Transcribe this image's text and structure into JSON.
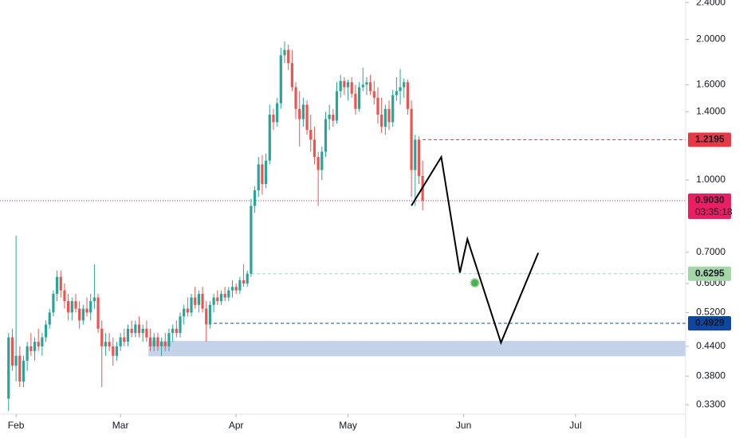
{
  "chart_data": {
    "type": "candlestick",
    "log_scale": true,
    "grid": false,
    "up_color": "#26a69a",
    "down_color": "#ef5350",
    "xlim": [
      -4.3,
      179.5
    ],
    "xticks": [
      {
        "value": 0,
        "label": "Feb"
      },
      {
        "value": 28,
        "label": "Mar"
      },
      {
        "value": 59,
        "label": "Apr"
      },
      {
        "value": 89,
        "label": "May"
      },
      {
        "value": 120,
        "label": "Jun"
      },
      {
        "value": 150,
        "label": "Jul"
      }
    ],
    "ylim": [
      0.315,
      2.43
    ],
    "yticks": [
      {
        "value": 2.4,
        "label": "2.4000"
      },
      {
        "value": 2.0,
        "label": "2.0000"
      },
      {
        "value": 1.6,
        "label": "1.6000"
      },
      {
        "value": 1.4,
        "label": "1.4000"
      },
      {
        "value": 1.0,
        "label": "1.0000"
      },
      {
        "value": 0.7,
        "label": "0.7000"
      },
      {
        "value": 0.6,
        "label": "0.6000"
      },
      {
        "value": 0.52,
        "label": "0.5200"
      },
      {
        "value": 0.44,
        "label": "0.4400"
      },
      {
        "value": 0.38,
        "label": "0.3800"
      },
      {
        "value": 0.33,
        "label": "0.3300"
      }
    ],
    "x": [
      -2,
      -1,
      0,
      1,
      2,
      3,
      4,
      5,
      6,
      7,
      8,
      9,
      10,
      11,
      12,
      13,
      14,
      15,
      16,
      17,
      18,
      19,
      20,
      21,
      22,
      23,
      24,
      25,
      26,
      27,
      28,
      29,
      30,
      31,
      32,
      33,
      34,
      35,
      36,
      37,
      38,
      39,
      40,
      41,
      42,
      43,
      44,
      45,
      46,
      47,
      48,
      49,
      50,
      51,
      52,
      53,
      54,
      55,
      56,
      57,
      58,
      59,
      60,
      61,
      62,
      63,
      64,
      65,
      66,
      67,
      68,
      69,
      70,
      71,
      72,
      73,
      74,
      75,
      76,
      77,
      78,
      79,
      80,
      81,
      82,
      83,
      84,
      85,
      86,
      87,
      88,
      89,
      90,
      91,
      92,
      93,
      94,
      95,
      96,
      97,
      98,
      99,
      100,
      101,
      102,
      103,
      104,
      105,
      106,
      107,
      108,
      109
    ],
    "candles": [
      [
        0.34,
        0.47,
        0.32,
        0.46
      ],
      [
        0.46,
        0.48,
        0.39,
        0.4
      ],
      [
        0.4,
        0.76,
        0.37,
        0.42
      ],
      [
        0.42,
        0.44,
        0.36,
        0.37
      ],
      [
        0.37,
        0.42,
        0.36,
        0.41
      ],
      [
        0.41,
        0.45,
        0.39,
        0.44
      ],
      [
        0.44,
        0.47,
        0.42,
        0.43
      ],
      [
        0.43,
        0.46,
        0.41,
        0.45
      ],
      [
        0.45,
        0.48,
        0.43,
        0.44
      ],
      [
        0.44,
        0.47,
        0.42,
        0.46
      ],
      [
        0.46,
        0.5,
        0.45,
        0.49
      ],
      [
        0.49,
        0.53,
        0.48,
        0.52
      ],
      [
        0.52,
        0.58,
        0.51,
        0.57
      ],
      [
        0.57,
        0.64,
        0.55,
        0.62
      ],
      [
        0.62,
        0.64,
        0.56,
        0.58
      ],
      [
        0.58,
        0.6,
        0.53,
        0.55
      ],
      [
        0.55,
        0.57,
        0.5,
        0.52
      ],
      [
        0.52,
        0.56,
        0.5,
        0.55
      ],
      [
        0.55,
        0.57,
        0.52,
        0.53
      ],
      [
        0.53,
        0.55,
        0.48,
        0.5
      ],
      [
        0.5,
        0.54,
        0.49,
        0.53
      ],
      [
        0.53,
        0.56,
        0.51,
        0.52
      ],
      [
        0.52,
        0.57,
        0.5,
        0.55
      ],
      [
        0.55,
        0.66,
        0.53,
        0.56
      ],
      [
        0.56,
        0.57,
        0.47,
        0.48
      ],
      [
        0.48,
        0.5,
        0.36,
        0.44
      ],
      [
        0.44,
        0.47,
        0.42,
        0.45
      ],
      [
        0.45,
        0.47,
        0.43,
        0.44
      ],
      [
        0.44,
        0.46,
        0.4,
        0.42
      ],
      [
        0.42,
        0.45,
        0.41,
        0.44
      ],
      [
        0.44,
        0.47,
        0.43,
        0.46
      ],
      [
        0.46,
        0.48,
        0.44,
        0.45
      ],
      [
        0.45,
        0.49,
        0.44,
        0.48
      ],
      [
        0.48,
        0.5,
        0.46,
        0.47
      ],
      [
        0.47,
        0.5,
        0.46,
        0.49
      ],
      [
        0.49,
        0.51,
        0.46,
        0.47
      ],
      [
        0.47,
        0.49,
        0.45,
        0.48
      ],
      [
        0.48,
        0.5,
        0.45,
        0.46
      ],
      [
        0.46,
        0.48,
        0.43,
        0.44
      ],
      [
        0.44,
        0.47,
        0.43,
        0.46
      ],
      [
        0.46,
        0.47,
        0.43,
        0.44
      ],
      [
        0.44,
        0.46,
        0.42,
        0.45
      ],
      [
        0.45,
        0.47,
        0.43,
        0.44
      ],
      [
        0.44,
        0.48,
        0.43,
        0.47
      ],
      [
        0.47,
        0.49,
        0.45,
        0.48
      ],
      [
        0.48,
        0.5,
        0.46,
        0.47
      ],
      [
        0.47,
        0.52,
        0.46,
        0.51
      ],
      [
        0.51,
        0.54,
        0.49,
        0.53
      ],
      [
        0.53,
        0.56,
        0.51,
        0.52
      ],
      [
        0.52,
        0.57,
        0.51,
        0.56
      ],
      [
        0.56,
        0.59,
        0.53,
        0.54
      ],
      [
        0.54,
        0.58,
        0.52,
        0.57
      ],
      [
        0.57,
        0.59,
        0.52,
        0.53
      ],
      [
        0.53,
        0.55,
        0.45,
        0.49
      ],
      [
        0.49,
        0.55,
        0.48,
        0.54
      ],
      [
        0.54,
        0.57,
        0.52,
        0.56
      ],
      [
        0.56,
        0.58,
        0.54,
        0.55
      ],
      [
        0.55,
        0.58,
        0.54,
        0.57
      ],
      [
        0.57,
        0.59,
        0.55,
        0.56
      ],
      [
        0.56,
        0.59,
        0.55,
        0.58
      ],
      [
        0.58,
        0.61,
        0.56,
        0.59
      ],
      [
        0.59,
        0.6,
        0.57,
        0.58
      ],
      [
        0.58,
        0.62,
        0.57,
        0.61
      ],
      [
        0.61,
        0.66,
        0.59,
        0.6
      ],
      [
        0.6,
        0.64,
        0.59,
        0.63
      ],
      [
        0.63,
        0.91,
        0.62,
        0.88
      ],
      [
        0.88,
        0.97,
        0.85,
        0.95
      ],
      [
        0.95,
        1.12,
        0.92,
        1.08
      ],
      [
        1.08,
        1.13,
        0.93,
        0.98
      ],
      [
        0.98,
        1.14,
        0.96,
        1.1
      ],
      [
        1.1,
        1.45,
        1.08,
        1.38
      ],
      [
        1.38,
        1.42,
        1.28,
        1.33
      ],
      [
        1.33,
        1.5,
        1.3,
        1.46
      ],
      [
        1.46,
        1.92,
        1.42,
        1.85
      ],
      [
        1.85,
        1.98,
        1.78,
        1.9
      ],
      [
        1.9,
        1.95,
        1.72,
        1.78
      ],
      [
        1.78,
        1.9,
        1.55,
        1.58
      ],
      [
        1.58,
        1.62,
        1.35,
        1.42
      ],
      [
        1.42,
        1.55,
        1.18,
        1.35
      ],
      [
        1.35,
        1.5,
        1.3,
        1.45
      ],
      [
        1.45,
        1.48,
        1.25,
        1.28
      ],
      [
        1.28,
        1.38,
        1.15,
        1.22
      ],
      [
        1.22,
        1.3,
        1.08,
        1.12
      ],
      [
        1.12,
        1.15,
        0.88,
        1.05
      ],
      [
        1.05,
        1.18,
        1.0,
        1.15
      ],
      [
        1.15,
        1.4,
        1.12,
        1.35
      ],
      [
        1.35,
        1.45,
        1.28,
        1.38
      ],
      [
        1.38,
        1.42,
        1.3,
        1.34
      ],
      [
        1.34,
        1.62,
        1.32,
        1.55
      ],
      [
        1.55,
        1.68,
        1.5,
        1.63
      ],
      [
        1.63,
        1.66,
        1.52,
        1.58
      ],
      [
        1.58,
        1.64,
        1.48,
        1.62
      ],
      [
        1.62,
        1.66,
        1.5,
        1.53
      ],
      [
        1.53,
        1.6,
        1.38,
        1.42
      ],
      [
        1.42,
        1.62,
        1.4,
        1.58
      ],
      [
        1.58,
        1.74,
        1.55,
        1.6
      ],
      [
        1.6,
        1.66,
        1.52,
        1.62
      ],
      [
        1.62,
        1.68,
        1.52,
        1.55
      ],
      [
        1.55,
        1.63,
        1.45,
        1.5
      ],
      [
        1.5,
        1.58,
        1.32,
        1.38
      ],
      [
        1.38,
        1.5,
        1.26,
        1.3
      ],
      [
        1.3,
        1.45,
        1.25,
        1.42
      ],
      [
        1.42,
        1.48,
        1.28,
        1.33
      ],
      [
        1.33,
        1.56,
        1.3,
        1.52
      ],
      [
        1.52,
        1.66,
        1.48,
        1.55
      ],
      [
        1.55,
        1.73,
        1.45,
        1.58
      ],
      [
        1.58,
        1.65,
        1.5,
        1.62
      ],
      [
        1.62,
        1.64,
        1.38,
        1.42
      ],
      [
        1.42,
        1.48,
        0.92,
        1.05
      ],
      [
        1.05,
        1.25,
        0.88,
        1.22
      ],
      [
        1.22,
        1.24,
        0.98,
        1.02
      ],
      [
        1.02,
        1.1,
        0.86,
        0.903
      ]
    ],
    "zone": {
      "x0": 35.5,
      "low": 0.419,
      "high": 0.452,
      "color": "#c5d3ea"
    },
    "price_lines": [
      {
        "value": 1.2195,
        "label": "1.2195",
        "from": 109,
        "color": "#e53945",
        "text_color": "#ffffff",
        "style": "dashed"
      },
      {
        "value": 0.903,
        "label": "0.9030",
        "countdown": "03:35:18",
        "color": "#e91e63",
        "text_color": "#ffffff",
        "style": "dotted"
      },
      {
        "value": 0.6295,
        "label": "0.6295",
        "from": 63,
        "color": "#a5d6a7",
        "text_color": "#131722",
        "style": "dashed"
      },
      {
        "value": 0.4929,
        "label": "0.4929",
        "from": 53,
        "color": "#0d47a1",
        "text_color": "#ffffff",
        "style": "dashed"
      }
    ],
    "projection": {
      "x": [
        106,
        114,
        119,
        121,
        130,
        140
      ],
      "values": [
        0.881,
        1.12,
        0.633,
        0.747,
        0.448,
        0.698
      ],
      "color": "#000000"
    },
    "marker": {
      "x": 123,
      "value": 0.602,
      "color": "#4caf50"
    }
  }
}
